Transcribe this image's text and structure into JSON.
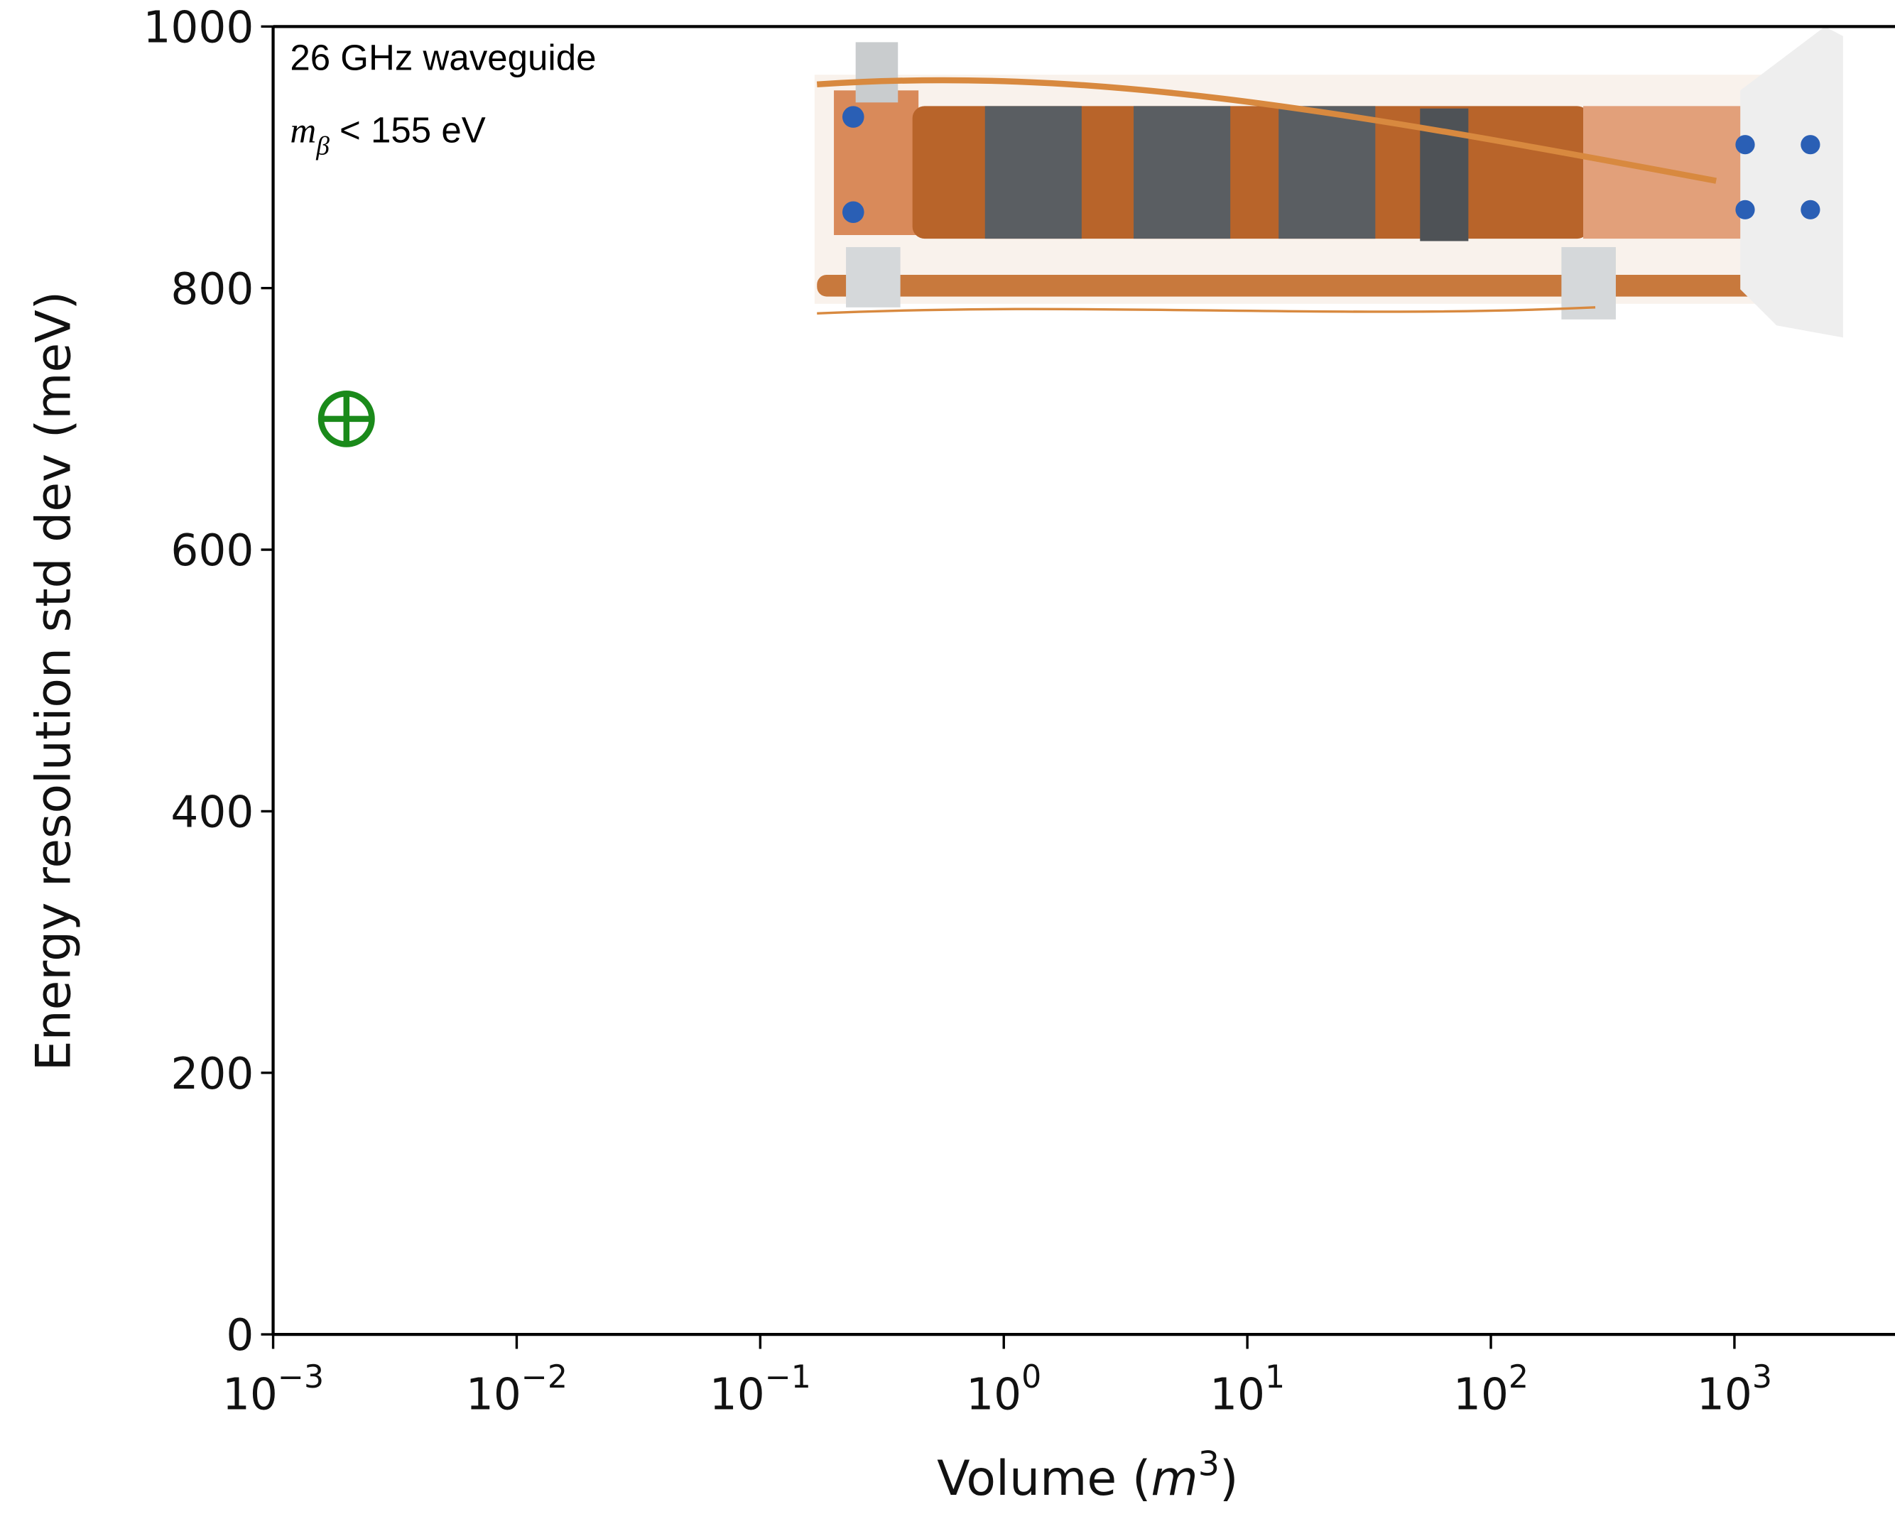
{
  "chart_data": {
    "type": "scatter",
    "xlabel": [
      "Volume (",
      "m",
      "3",
      ")"
    ],
    "ylabel": "Energy resolution std dev (meV)",
    "annotations": {
      "title": "26 GHz waveguide",
      "limit": [
        "m",
        "β",
        " < 155 eV"
      ]
    },
    "x": [
      0.002
    ],
    "series": [
      {
        "color": "#1a8a1a",
        "values": [
          700
        ]
      }
    ],
    "xscale": "log",
    "xlim": [
      0.001,
      5000
    ],
    "ylim": [
      0,
      1000
    ],
    "xticks": [
      {
        "value": 0.001,
        "label": "10",
        "exponent": "−3"
      },
      {
        "value": 0.01,
        "label": "10",
        "exponent": "−2"
      },
      {
        "value": 0.1,
        "label": "10",
        "exponent": "−1"
      },
      {
        "value": 1,
        "label": "10",
        "exponent": "0"
      },
      {
        "value": 10,
        "label": "10",
        "exponent": "1"
      },
      {
        "value": 100,
        "label": "10",
        "exponent": "2"
      },
      {
        "value": 1000,
        "label": "10",
        "exponent": "3"
      }
    ],
    "yticks": [
      0,
      200,
      400,
      600,
      800,
      1000
    ]
  }
}
